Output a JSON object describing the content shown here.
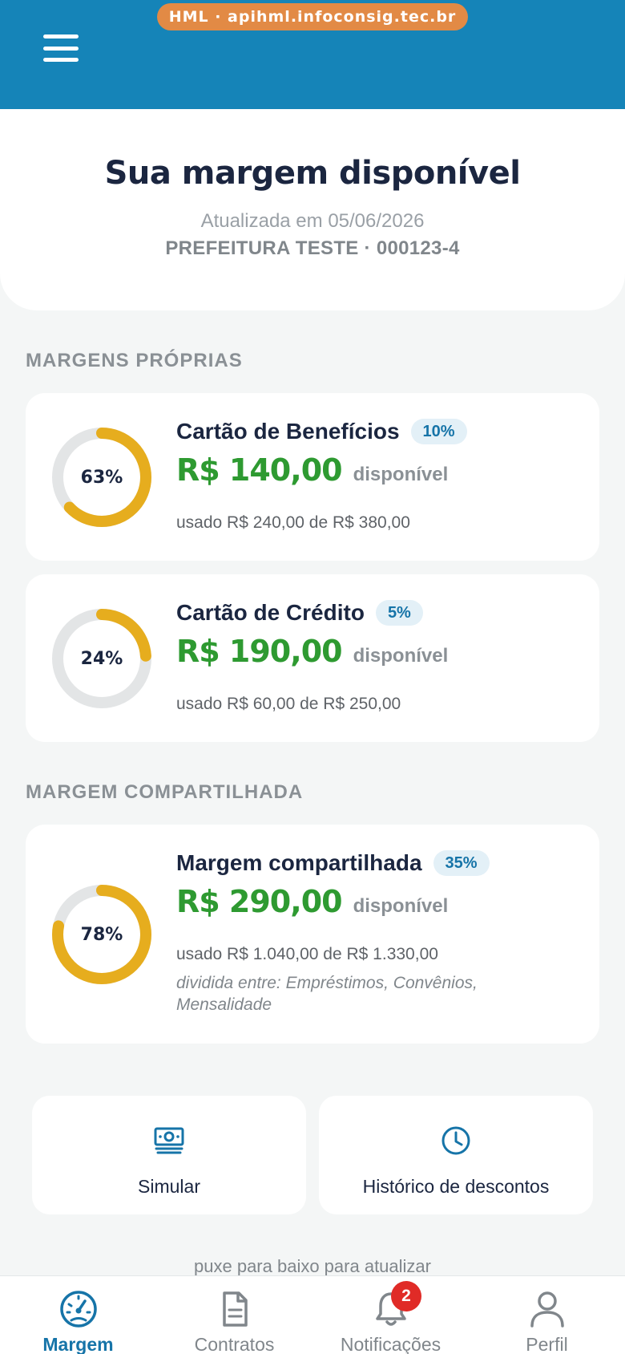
{
  "header": {
    "env_label": "HML · apihml.infoconsig.tec.br",
    "menu_icon": "hamburger-menu-icon",
    "background_color": "#1584b8"
  },
  "hero": {
    "title": "Sua margem disponível",
    "updated": "Atualizada em 05/06/2026",
    "organization": "PREFEITURA TESTE · 000123-4"
  },
  "sections": {
    "own_margins_label": "MARGENS PRÓPRIAS",
    "shared_margin_label": "MARGEM COMPARTILHADA"
  },
  "margins": [
    {
      "title": "Cartão de Benefícios",
      "badge": "10%",
      "amount": "R$ 140,00",
      "available_label": "disponível",
      "used_text": "usado R$ 240,00 de R$ 380,00",
      "usage_label": "63%",
      "usage_fraction": 0.63
    },
    {
      "title": "Cartão de Crédito",
      "badge": "5%",
      "amount": "R$ 190,00",
      "available_label": "disponível",
      "used_text": "usado R$ 60,00 de R$ 250,00",
      "usage_label": "24%",
      "usage_fraction": 0.24
    },
    {
      "title": "Margem compartilhada",
      "badge": "35%",
      "amount": "R$ 290,00",
      "available_label": "disponível",
      "used_text": "usado R$ 1.040,00 de R$ 1.330,00",
      "split_text": "dividida entre: Empréstimos, Convênios, Mensalidade",
      "usage_label": "78%",
      "usage_fraction": 0.78
    }
  ],
  "actions": {
    "simulate": {
      "label": "Simular",
      "icon": "money-icon"
    },
    "history": {
      "label": "Histórico de descontos",
      "icon": "clock-icon"
    }
  },
  "pull_hint": "puxe para baixo para atualizar",
  "bottom_nav": {
    "items": [
      {
        "label": "Margem",
        "icon": "speedometer-icon",
        "active": true
      },
      {
        "label": "Contratos",
        "icon": "document-icon",
        "active": false
      },
      {
        "label": "Notificações",
        "icon": "bell-icon",
        "active": false,
        "badge": "2"
      },
      {
        "label": "Perfil",
        "icon": "user-icon",
        "active": false
      }
    ]
  },
  "colors": {
    "accent_blue": "#1674a8",
    "amount_green": "#2e9a31",
    "donut_track": "#e3e5e6",
    "donut_fill": "#e6ad1e",
    "badge_red": "#e02b27"
  }
}
